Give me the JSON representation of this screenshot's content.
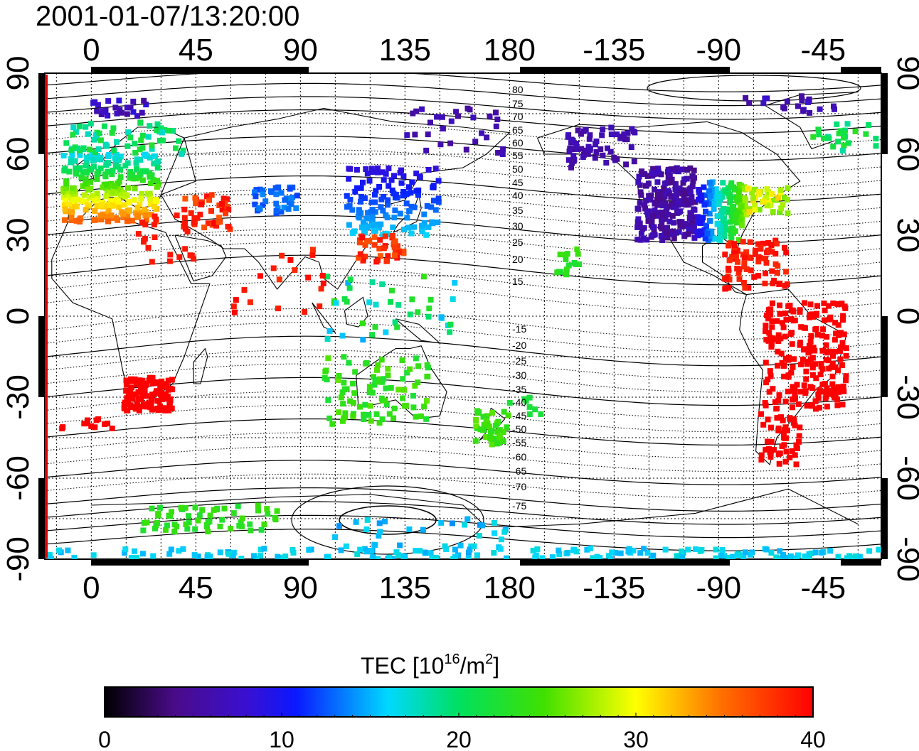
{
  "title": "2001-01-07/13:20:00",
  "axes": {
    "lon_ticks": [
      "0",
      "45",
      "90",
      "135",
      "180",
      "-135",
      "-90",
      "-45"
    ],
    "lat_ticks": [
      "90",
      "60",
      "30",
      "0",
      "-30",
      "-60",
      "-90"
    ]
  },
  "contour_labels": {
    "north": [
      "80",
      "75",
      "70",
      "65",
      "60",
      "55",
      "50",
      "45",
      "40",
      "35",
      "30",
      "25",
      "20",
      "15"
    ],
    "south": [
      "-15",
      "-20",
      "-25",
      "-30",
      "-35",
      "-40",
      "-45",
      "-50",
      "-55",
      "-60",
      "-65",
      "-70",
      "-75"
    ]
  },
  "colorbar": {
    "label_main": "TEC  [10",
    "label_sup1": "16",
    "label_mid": "/m",
    "label_sup2": "2",
    "label_end": "]",
    "ticks": [
      "0",
      "10",
      "20",
      "30",
      "40"
    ],
    "min": 0,
    "max": 40
  },
  "colors": {
    "low": "#000000",
    "purple": "#5a0fa0",
    "blue": "#0a18ff",
    "cyan": "#00f0ff",
    "green": "#00e000",
    "yellow": "#ffff00",
    "high": "#ff0000"
  }
}
